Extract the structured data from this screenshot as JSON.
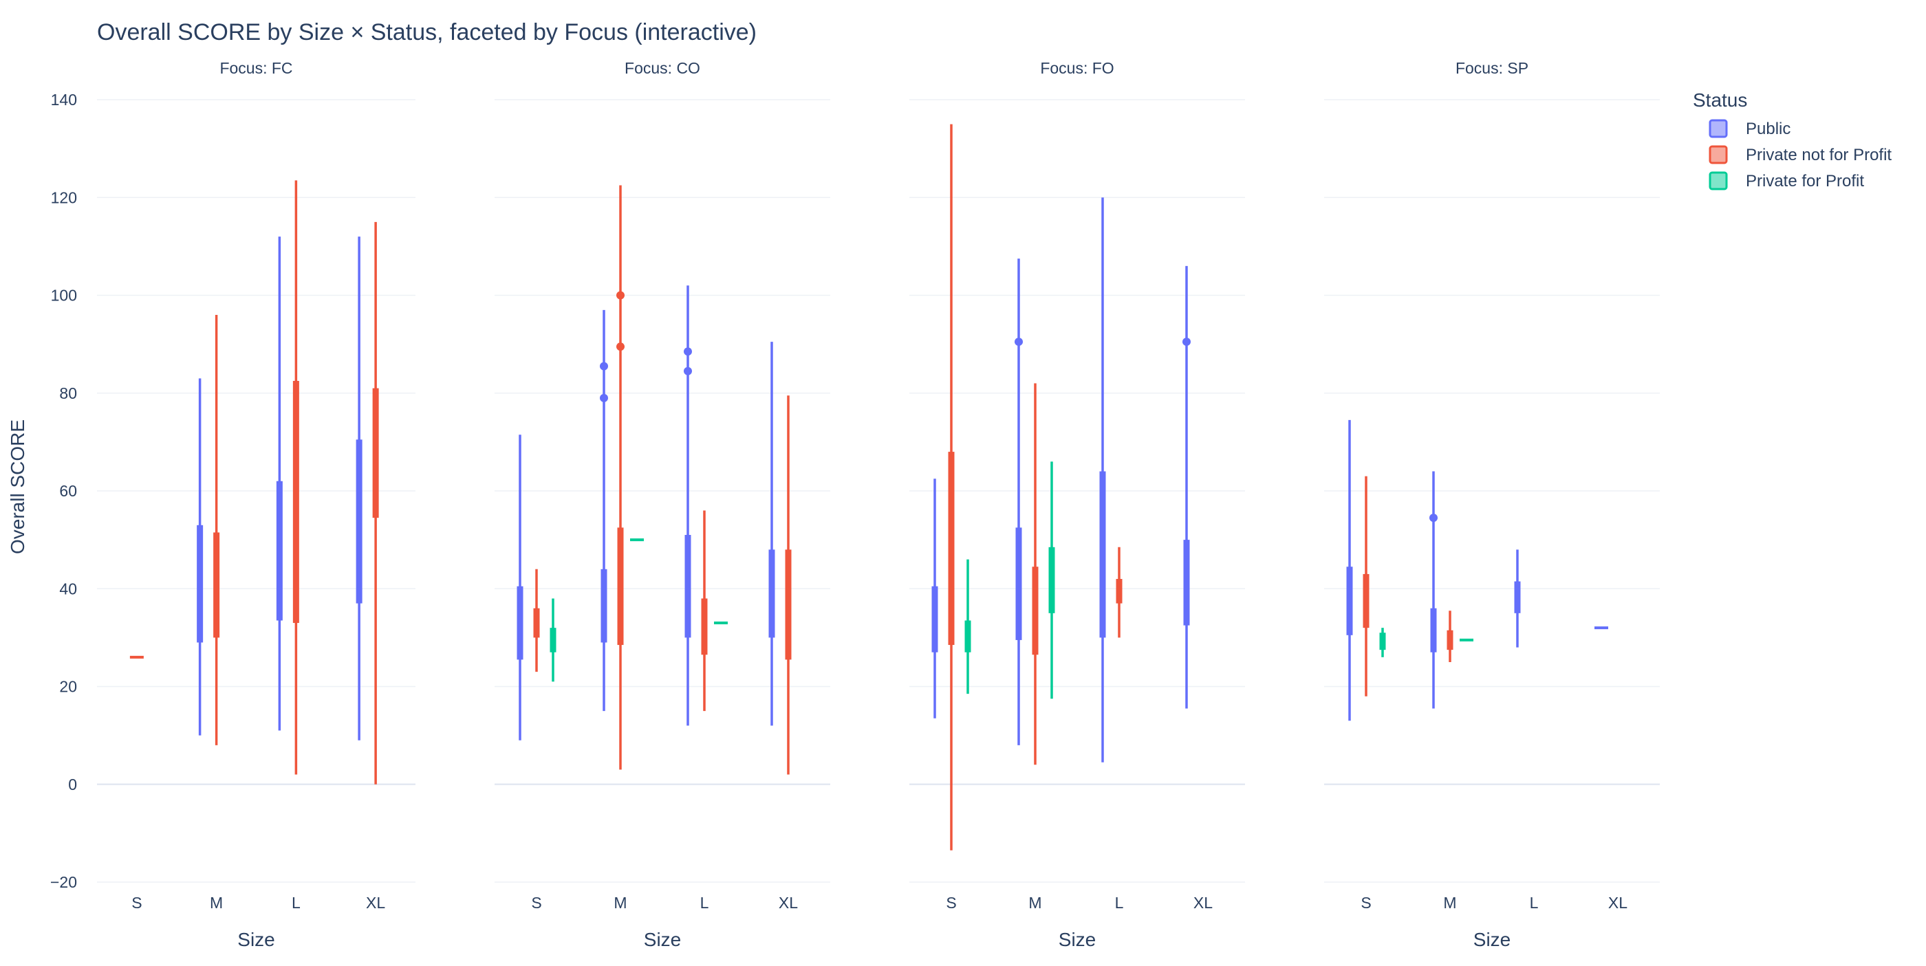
{
  "chart_data": {
    "type": "violin",
    "title": "Overall SCORE by Size × Status, faceted by Focus (interactive)",
    "xlabel": "Size",
    "ylabel": "Overall SCORE",
    "ylim": [
      -20,
      140
    ],
    "yticks": [
      -20,
      0,
      20,
      40,
      60,
      80,
      100,
      120,
      140
    ],
    "y_tick_labels": [
      "−20",
      "0",
      "20",
      "40",
      "60",
      "80",
      "100",
      "120",
      "140"
    ],
    "categories": [
      "S",
      "M",
      "L",
      "XL"
    ],
    "grid": true,
    "legend": {
      "title": "Status",
      "placement": "top-right",
      "entries": [
        {
          "name": "Public",
          "color": "#636efa"
        },
        {
          "name": "Private not for Profit",
          "color": "#ef553b"
        },
        {
          "name": "Private for Profit",
          "color": "#00cc96"
        }
      ]
    },
    "facets": [
      {
        "title": "Focus: FC",
        "groups": [
          {
            "category": "S",
            "status": "Private not for Profit",
            "min": 26,
            "q1": 26,
            "q3": 26,
            "max": 26,
            "outliers": []
          },
          {
            "category": "M",
            "status": "Public",
            "min": 10,
            "q1": 29,
            "q3": 53,
            "max": 83,
            "outliers": []
          },
          {
            "category": "M",
            "status": "Private not for Profit",
            "min": 8,
            "q1": 30,
            "q3": 51.5,
            "max": 96,
            "outliers": []
          },
          {
            "category": "L",
            "status": "Public",
            "min": 11,
            "q1": 33.5,
            "q3": 62,
            "max": 112,
            "outliers": []
          },
          {
            "category": "L",
            "status": "Private not for Profit",
            "min": 2,
            "q1": 33,
            "q3": 82.5,
            "max": 123.5,
            "outliers": []
          },
          {
            "category": "XL",
            "status": "Public",
            "min": 9,
            "q1": 37,
            "q3": 70.5,
            "max": 112,
            "outliers": []
          },
          {
            "category": "XL",
            "status": "Private not for Profit",
            "min": 0,
            "q1": 54.5,
            "q3": 81,
            "max": 115,
            "outliers": []
          }
        ]
      },
      {
        "title": "Focus: CO",
        "groups": [
          {
            "category": "S",
            "status": "Public",
            "min": 9,
            "q1": 25.5,
            "q3": 40.5,
            "max": 71.5,
            "outliers": []
          },
          {
            "category": "S",
            "status": "Private not for Profit",
            "min": 23,
            "q1": 30,
            "q3": 36,
            "max": 44,
            "outliers": []
          },
          {
            "category": "S",
            "status": "Private for Profit",
            "min": 21,
            "q1": 27,
            "q3": 32,
            "max": 38,
            "outliers": []
          },
          {
            "category": "M",
            "status": "Public",
            "min": 15,
            "q1": 29,
            "q3": 44,
            "max": 97,
            "outliers": [
              85.5,
              79
            ]
          },
          {
            "category": "M",
            "status": "Private not for Profit",
            "min": 3,
            "q1": 28.5,
            "q3": 52.5,
            "max": 122.5,
            "outliers": [
              100,
              89.5
            ]
          },
          {
            "category": "M",
            "status": "Private for Profit",
            "min": 50,
            "q1": 50,
            "q3": 50,
            "max": 50,
            "outliers": []
          },
          {
            "category": "L",
            "status": "Public",
            "min": 12,
            "q1": 30,
            "q3": 51,
            "max": 102,
            "outliers": [
              88.5,
              84.5
            ]
          },
          {
            "category": "L",
            "status": "Private not for Profit",
            "min": 15,
            "q1": 26.5,
            "q3": 38,
            "max": 56,
            "outliers": []
          },
          {
            "category": "L",
            "status": "Private for Profit",
            "min": 33,
            "q1": 33,
            "q3": 33,
            "max": 33,
            "outliers": []
          },
          {
            "category": "XL",
            "status": "Public",
            "min": 12,
            "q1": 30,
            "q3": 48,
            "max": 90.5,
            "outliers": []
          },
          {
            "category": "XL",
            "status": "Private not for Profit",
            "min": 2,
            "q1": 25.5,
            "q3": 48,
            "max": 79.5,
            "outliers": []
          }
        ]
      },
      {
        "title": "Focus: FO",
        "groups": [
          {
            "category": "S",
            "status": "Public",
            "min": 13.5,
            "q1": 27,
            "q3": 40.5,
            "max": 62.5,
            "outliers": []
          },
          {
            "category": "S",
            "status": "Private not for Profit",
            "min": -13.5,
            "q1": 28.5,
            "q3": 68,
            "max": 135,
            "outliers": []
          },
          {
            "category": "S",
            "status": "Private for Profit",
            "min": 18.5,
            "q1": 27,
            "q3": 33.5,
            "max": 46,
            "outliers": []
          },
          {
            "category": "M",
            "status": "Public",
            "min": 8,
            "q1": 29.5,
            "q3": 52.5,
            "max": 107.5,
            "outliers": [
              90.5
            ]
          },
          {
            "category": "M",
            "status": "Private not for Profit",
            "min": 4,
            "q1": 26.5,
            "q3": 44.5,
            "max": 82,
            "outliers": []
          },
          {
            "category": "M",
            "status": "Private for Profit",
            "min": 17.5,
            "q1": 35,
            "q3": 48.5,
            "max": 66,
            "outliers": []
          },
          {
            "category": "L",
            "status": "Public",
            "min": 4.5,
            "q1": 30,
            "q3": 64,
            "max": 120,
            "outliers": []
          },
          {
            "category": "L",
            "status": "Private not for Profit",
            "min": 30,
            "q1": 37,
            "q3": 42,
            "max": 48.5,
            "outliers": []
          },
          {
            "category": "XL",
            "status": "Public",
            "min": 15.5,
            "q1": 32.5,
            "q3": 50,
            "max": 106,
            "outliers": [
              90.5
            ]
          }
        ]
      },
      {
        "title": "Focus: SP",
        "groups": [
          {
            "category": "S",
            "status": "Public",
            "min": 13,
            "q1": 30.5,
            "q3": 44.5,
            "max": 74.5,
            "outliers": []
          },
          {
            "category": "S",
            "status": "Private not for Profit",
            "min": 18,
            "q1": 32,
            "q3": 43,
            "max": 63,
            "outliers": []
          },
          {
            "category": "S",
            "status": "Private for Profit",
            "min": 26,
            "q1": 27.5,
            "q3": 31,
            "max": 32,
            "outliers": []
          },
          {
            "category": "M",
            "status": "Public",
            "min": 15.5,
            "q1": 27,
            "q3": 36,
            "max": 64,
            "outliers": [
              54.5
            ]
          },
          {
            "category": "M",
            "status": "Private not for Profit",
            "min": 25,
            "q1": 27.5,
            "q3": 31.5,
            "max": 35.5,
            "outliers": []
          },
          {
            "category": "M",
            "status": "Private for Profit",
            "min": 29.5,
            "q1": 29.5,
            "q3": 29.5,
            "max": 29.5,
            "outliers": []
          },
          {
            "category": "L",
            "status": "Public",
            "min": 28,
            "q1": 35,
            "q3": 41.5,
            "max": 48,
            "outliers": []
          },
          {
            "category": "XL",
            "status": "Public",
            "min": 32,
            "q1": 32,
            "q3": 32,
            "max": 32,
            "outliers": []
          }
        ]
      }
    ]
  }
}
